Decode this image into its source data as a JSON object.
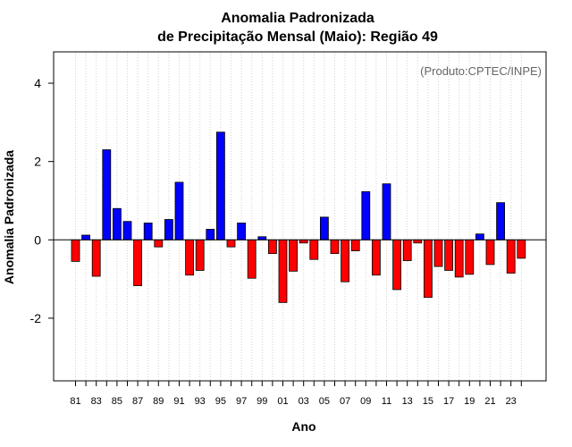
{
  "chart_data": {
    "type": "bar",
    "title": "Anomalia Padronizada",
    "subtitle": "de Precipitação Mensal (Maio): Região 49",
    "xlabel": "Ano",
    "ylabel": "Anomalia Padronizada",
    "annotation": "(Produto:CPTEC/INPE)",
    "ylim": [
      -3.6,
      4.8
    ],
    "yticks": [
      -2,
      0,
      2,
      4
    ],
    "yticklabels": [
      "-2",
      "0",
      "2",
      "4"
    ],
    "grid": "vertical dotted",
    "colors": {
      "positive": "#0000ff",
      "negative": "#ff0000"
    },
    "categories": [
      "1981",
      "1982",
      "1983",
      "1984",
      "1985",
      "1986",
      "1987",
      "1988",
      "1989",
      "1990",
      "1991",
      "1992",
      "1993",
      "1994",
      "1995",
      "1996",
      "1997",
      "1998",
      "1999",
      "2000",
      "2001",
      "2002",
      "2003",
      "2004",
      "2005",
      "2006",
      "2007",
      "2008",
      "2009",
      "2010",
      "2011",
      "2012",
      "2013",
      "2014",
      "2015",
      "2016",
      "2017",
      "2018",
      "2019",
      "2020",
      "2021",
      "2022",
      "2023",
      "2024"
    ],
    "xticklabels": [
      "81",
      "",
      "83",
      "",
      "85",
      "",
      "87",
      "",
      "89",
      "",
      "91",
      "",
      "93",
      "",
      "95",
      "",
      "97",
      "",
      "99",
      "",
      "01",
      "",
      "03",
      "",
      "05",
      "",
      "07",
      "",
      "09",
      "",
      "11",
      "",
      "13",
      "",
      "15",
      "",
      "17",
      "",
      "19",
      "",
      "21",
      "",
      "23",
      ""
    ],
    "values": [
      -0.55,
      0.12,
      -0.93,
      2.3,
      0.8,
      0.47,
      -1.17,
      0.43,
      -0.18,
      0.52,
      1.47,
      -0.9,
      -0.78,
      0.27,
      2.75,
      -0.18,
      0.43,
      -0.98,
      0.08,
      -0.35,
      -1.6,
      -0.8,
      -0.08,
      -0.5,
      0.58,
      -0.35,
      -1.07,
      -0.28,
      1.23,
      -0.9,
      1.43,
      -1.27,
      -0.53,
      -0.08,
      -1.47,
      -0.68,
      -0.78,
      -0.95,
      -0.88,
      0.15,
      -0.63,
      0.95,
      -0.85,
      -0.47
    ]
  }
}
